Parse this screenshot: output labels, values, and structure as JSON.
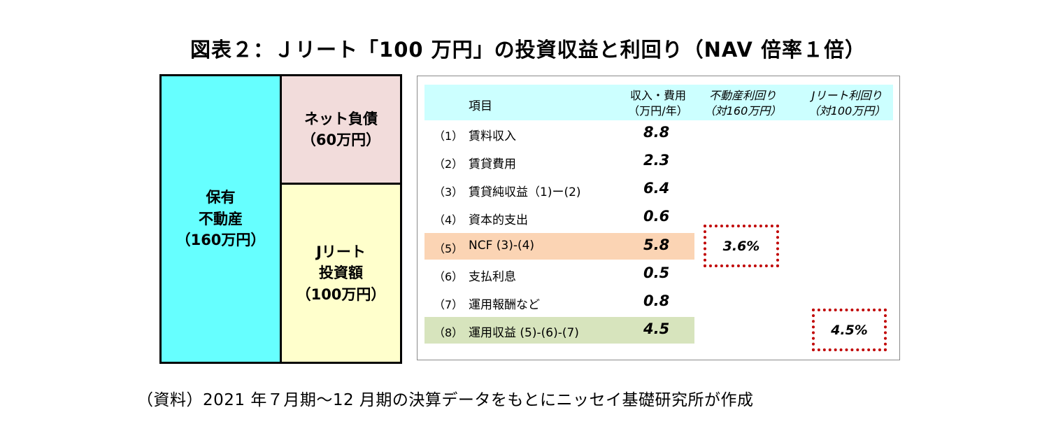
{
  "title": "図表２：Ｊリート「100 万円」の投資収益と利回り（NAV 倍率１倍）",
  "diagram": {
    "asset": [
      "保有",
      "不動産",
      "（160万円）"
    ],
    "debt": [
      "ネット負債",
      "（60万円）"
    ],
    "equity": [
      "Jリート",
      "投資額",
      "（100万円）"
    ]
  },
  "table": {
    "header": {
      "item": "項目",
      "col1": [
        "収入・費用",
        "（万円/年）"
      ],
      "col2": [
        "不動産利回り",
        "（対160万円）"
      ],
      "col3": [
        "Jリート利回り",
        "（対100万円）"
      ]
    },
    "rows": [
      {
        "no": "（1）",
        "label": "賃料収入",
        "value": "8.8"
      },
      {
        "no": "（2）",
        "label": "賃貸費用",
        "value": "2.3"
      },
      {
        "no": "（3）",
        "label": "賃貸純収益（1)ー(2)",
        "value": "6.4"
      },
      {
        "no": "（4）",
        "label": "資本的支出",
        "value": "0.6"
      },
      {
        "no": "（5）",
        "label": "NCF (3)-(4)",
        "value": "5.8"
      },
      {
        "no": "（6）",
        "label": "支払利息",
        "value": "0.5"
      },
      {
        "no": "（7）",
        "label": "運用報酬など",
        "value": "0.8"
      },
      {
        "no": "（8）",
        "label": "運用収益 (5)-(6)-(7)",
        "value": "4.5"
      }
    ],
    "yield_property": "3.6%",
    "yield_jreit": "4.5%"
  },
  "source": "（資料）2021 年７月期～12 月期の決算データをもとにニッセイ基礎研究所が作成",
  "colors": {
    "asset": "#66ffff",
    "debt": "#f2dcdb",
    "equity": "#ffffcc",
    "header": "#ccffff",
    "row5": "#fbd4b4",
    "row8": "#d7e4bd",
    "yield_border": "#c00000"
  }
}
